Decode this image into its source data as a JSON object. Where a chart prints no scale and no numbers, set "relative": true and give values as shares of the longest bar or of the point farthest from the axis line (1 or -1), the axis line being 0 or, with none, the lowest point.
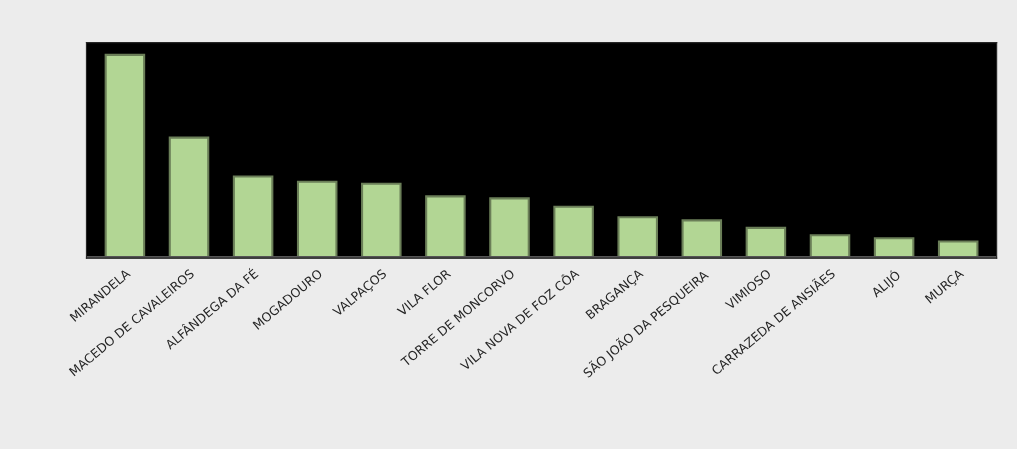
{
  "chart_data": {
    "type": "bar",
    "relative": true,
    "categories": [
      "MIRANDELA",
      "MACEDO DE CAVALEIROS",
      "ALFÂNDEGA DA FÉ",
      "MOGADOURO",
      "VALPAÇOS",
      "VILA FLOR",
      "TORRE DE MONCORVO",
      "VILA NOVA DE FOZ CÔA",
      "BRAGANÇA",
      "SÃO JOÃO DA PESQUEIRA",
      "VIMIOSO",
      "CARRAZEDA DE ANSIÃES",
      "ALIJÓ",
      "MURÇA"
    ],
    "values": [
      1,
      0.593,
      0.402,
      0.376,
      0.366,
      0.304,
      0.294,
      0.253,
      0.201,
      0.186,
      0.149,
      0.113,
      0.098,
      0.082
    ],
    "color": "#b2d694",
    "grid": false,
    "legend": false
  }
}
